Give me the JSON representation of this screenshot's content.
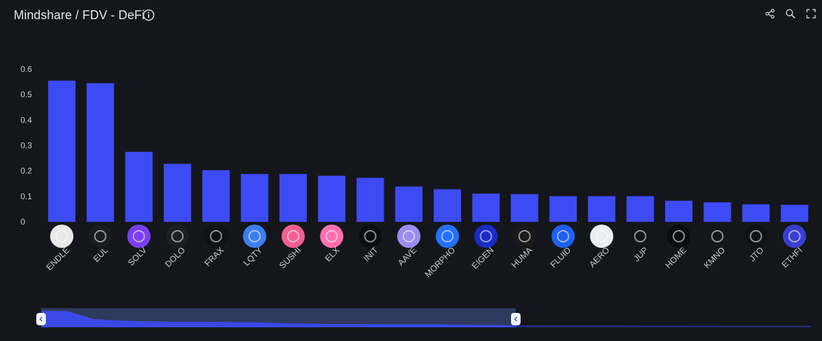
{
  "header": {
    "title": "Mindshare / FDV - DeFi",
    "info_icon": "info-icon",
    "tools": [
      "share-icon",
      "zoom-icon",
      "fullscreen-icon"
    ]
  },
  "colors": {
    "bar": "#3d4bf5",
    "background": "#14161b",
    "axis_text": "#c9ccd4",
    "grid": "#2a2d35",
    "slider_window": "#2e3a5e",
    "slider_area": "#3d4bf5"
  },
  "chart_data": {
    "type": "bar",
    "categories": [
      "ENDLE",
      "EUL",
      "SOLV",
      "DOLO",
      "FRAX",
      "LQTY",
      "SUSHI",
      "ELX",
      "INIT",
      "AAVE",
      "MORPHO",
      "EIGEN",
      "HUMA",
      "FLUID",
      "AERO",
      "JUP",
      "HOME",
      "KMNO",
      "JTO",
      "ETHFI"
    ],
    "values": [
      0.555,
      0.545,
      0.275,
      0.228,
      0.203,
      0.188,
      0.188,
      0.181,
      0.173,
      0.139,
      0.128,
      0.111,
      0.109,
      0.101,
      0.101,
      0.101,
      0.083,
      0.077,
      0.069,
      0.067
    ],
    "title": "Mindshare / FDV - DeFi",
    "ylim": [
      0,
      0.6
    ],
    "yticks": [
      "0",
      "0.1",
      "0.2",
      "0.3",
      "0.4",
      "0.5",
      "0.6"
    ],
    "grid": false,
    "legend": "none",
    "logo_icons": [
      "wendle-logo-icon",
      "eul-logo-icon",
      "solv-logo-icon",
      "dolo-logo-icon",
      "frax-logo-icon",
      "lqty-logo-icon",
      "sushi-logo-icon",
      "elx-logo-icon",
      "init-logo-icon",
      "aave-logo-icon",
      "morpho-logo-icon",
      "eigen-logo-icon",
      "huma-logo-icon",
      "fluid-logo-icon",
      "aero-logo-icon",
      "jup-logo-icon",
      "home-logo-icon",
      "kmno-logo-icon",
      "jto-logo-icon",
      "ethfi-logo-icon"
    ],
    "logo_colors": [
      "#e8e8e8",
      "#1a1c22",
      "#7b3ff2",
      "#1d1e24",
      "#101114",
      "#3d7ff0",
      "#f06090",
      "#ff6fb0",
      "#0c0d10",
      "#9c8cf0",
      "#2470ff",
      "#1a2cc8",
      "#1a1a1a",
      "#1f60f0",
      "#ecedf0",
      "#12151a",
      "#0b0c10",
      "#151619",
      "#111216",
      "#3a3fd0"
    ],
    "overview": [
      0.555,
      0.545,
      0.275,
      0.228,
      0.203,
      0.188,
      0.188,
      0.181,
      0.173,
      0.139,
      0.128,
      0.111,
      0.109,
      0.101,
      0.101,
      0.101,
      0.083,
      0.077,
      0.069,
      0.067,
      0.064,
      0.062,
      0.06,
      0.058,
      0.057,
      0.055,
      0.054,
      0.052,
      0.051,
      0.05
    ]
  }
}
